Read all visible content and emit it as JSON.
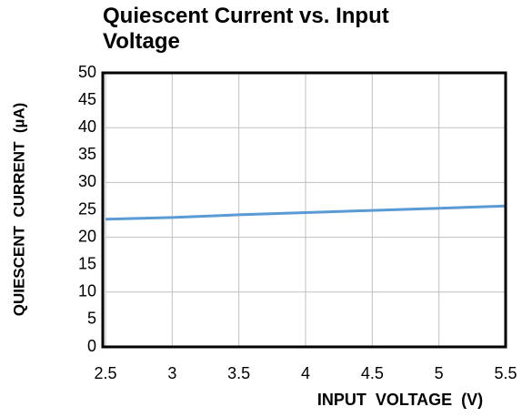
{
  "chart_data": {
    "type": "line",
    "title": "Quiescent Current vs. Input Voltage",
    "x_label": "INPUT  VOLTAGE  (V)",
    "y_label": "QUIESCENT  CURRENT  (µA)",
    "x": [
      2.5,
      3,
      3.5,
      4,
      4.5,
      5,
      5.5
    ],
    "series": [
      {
        "name": "Quiescent Current",
        "color": "#5b9bd5",
        "values": [
          23.3,
          23.6,
          24.1,
          24.5,
          24.9,
          25.3,
          25.7
        ]
      }
    ],
    "xlim": [
      2.5,
      5.5
    ],
    "xticks": [
      2.5,
      3,
      3.5,
      4,
      4.5,
      5,
      5.5
    ],
    "ylim": [
      0,
      50
    ],
    "yticks": [
      0,
      5,
      10,
      15,
      20,
      25,
      30,
      35,
      40,
      45,
      50
    ],
    "grid": true
  }
}
